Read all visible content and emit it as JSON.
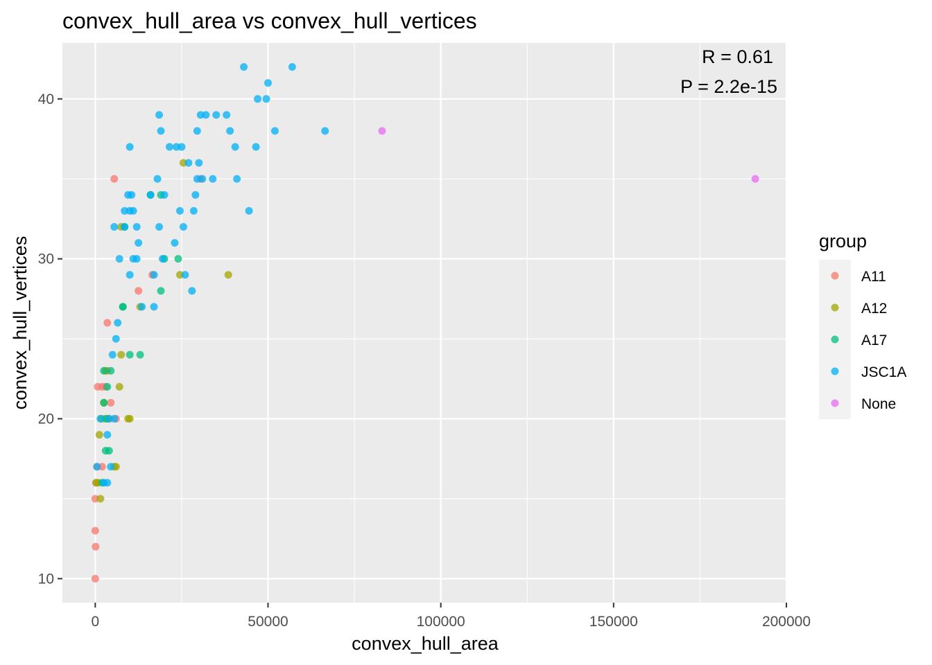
{
  "chart_data": {
    "type": "scatter",
    "title": "convex_hull_area vs convex_hull_vertices",
    "xlabel": "convex_hull_area",
    "ylabel": "convex_hull_vertices",
    "xlim": [
      -9500,
      200000
    ],
    "ylim": [
      8.5,
      43.5
    ],
    "x_ticks": [
      0,
      50000,
      100000,
      150000,
      200000
    ],
    "y_ticks": [
      10,
      20,
      30,
      40
    ],
    "grid": true,
    "legend": {
      "title": "group",
      "placement": "right",
      "entries": [
        "A11",
        "A12",
        "A17",
        "JSC1A",
        "None"
      ]
    },
    "annotations": [
      "R = 0.61",
      "P = 2.2e-15"
    ],
    "colors": {
      "A11": "#F8766D",
      "A12": "#A3A500",
      "A17": "#00BF7D",
      "JSC1A": "#00B0F6",
      "None": "#E76BF3",
      "panel": "#EBEBEB",
      "grid": "#FFFFFF"
    },
    "series": [
      {
        "name": "A11",
        "points": [
          [
            0,
            10
          ],
          [
            100,
            12
          ],
          [
            0,
            13
          ],
          [
            0,
            15
          ],
          [
            500,
            17
          ],
          [
            2000,
            17
          ],
          [
            200,
            16
          ],
          [
            700,
            22
          ],
          [
            2000,
            22
          ],
          [
            3000,
            22
          ],
          [
            3500,
            26
          ],
          [
            3500,
            23
          ],
          [
            4500,
            21
          ],
          [
            4000,
            20
          ],
          [
            6000,
            20
          ],
          [
            5500,
            35
          ],
          [
            12500,
            28
          ],
          [
            16500,
            29
          ],
          [
            30500,
            35
          ]
        ]
      },
      {
        "name": "A12",
        "points": [
          [
            1500,
            15
          ],
          [
            300,
            16
          ],
          [
            800,
            16
          ],
          [
            1200,
            19
          ],
          [
            1800,
            20
          ],
          [
            3500,
            20
          ],
          [
            5500,
            17
          ],
          [
            6000,
            17
          ],
          [
            7000,
            22
          ],
          [
            7500,
            24
          ],
          [
            7500,
            32
          ],
          [
            9500,
            20
          ],
          [
            10000,
            20
          ],
          [
            13000,
            27
          ],
          [
            24500,
            29
          ],
          [
            25500,
            36
          ],
          [
            38500,
            29
          ],
          [
            3000,
            23
          ],
          [
            2500,
            21
          ]
        ]
      },
      {
        "name": "A17",
        "points": [
          [
            2000,
            16
          ],
          [
            2500,
            21
          ],
          [
            2500,
            23
          ],
          [
            3000,
            18
          ],
          [
            3500,
            22
          ],
          [
            4000,
            18
          ],
          [
            4500,
            23
          ],
          [
            3000,
            20
          ],
          [
            8000,
            27
          ],
          [
            8000,
            27
          ],
          [
            10000,
            24
          ],
          [
            13000,
            24
          ],
          [
            16000,
            34
          ],
          [
            19000,
            34
          ],
          [
            19000,
            28
          ],
          [
            20000,
            30
          ],
          [
            24000,
            30
          ],
          [
            8500,
            32
          ]
        ]
      },
      {
        "name": "JSC1A",
        "points": [
          [
            500,
            17
          ],
          [
            1500,
            20
          ],
          [
            2500,
            16
          ],
          [
            3500,
            16
          ],
          [
            3500,
            19
          ],
          [
            4000,
            20
          ],
          [
            4500,
            17
          ],
          [
            5500,
            20
          ],
          [
            5000,
            24
          ],
          [
            6000,
            25
          ],
          [
            6500,
            26
          ],
          [
            7000,
            30
          ],
          [
            5500,
            32
          ],
          [
            8500,
            32
          ],
          [
            8500,
            33
          ],
          [
            9500,
            34
          ],
          [
            10000,
            33
          ],
          [
            10500,
            34
          ],
          [
            11000,
            33
          ],
          [
            11000,
            30
          ],
          [
            12000,
            30
          ],
          [
            12000,
            32
          ],
          [
            12500,
            31
          ],
          [
            10000,
            29
          ],
          [
            10000,
            37
          ],
          [
            13500,
            27
          ],
          [
            17000,
            29
          ],
          [
            17000,
            27
          ],
          [
            18000,
            35
          ],
          [
            18500,
            32
          ],
          [
            18500,
            39
          ],
          [
            19000,
            38
          ],
          [
            20000,
            34
          ],
          [
            19500,
            30
          ],
          [
            21500,
            37
          ],
          [
            23000,
            31
          ],
          [
            23500,
            37
          ],
          [
            24500,
            33
          ],
          [
            25000,
            37
          ],
          [
            25500,
            32
          ],
          [
            26000,
            29
          ],
          [
            27000,
            36
          ],
          [
            28000,
            28
          ],
          [
            28500,
            33
          ],
          [
            29000,
            34
          ],
          [
            29500,
            35
          ],
          [
            29500,
            38
          ],
          [
            30000,
            36
          ],
          [
            30500,
            39
          ],
          [
            31000,
            35
          ],
          [
            32000,
            39
          ],
          [
            34000,
            35
          ],
          [
            35000,
            39
          ],
          [
            38000,
            39
          ],
          [
            39000,
            38
          ],
          [
            40500,
            37
          ],
          [
            41000,
            35
          ],
          [
            43000,
            42
          ],
          [
            44500,
            33
          ],
          [
            46500,
            37
          ],
          [
            47000,
            40
          ],
          [
            49500,
            40
          ],
          [
            50000,
            41
          ],
          [
            52000,
            38
          ],
          [
            57000,
            42
          ],
          [
            66500,
            38
          ],
          [
            16000,
            34
          ]
        ]
      },
      {
        "name": "None",
        "points": [
          [
            83000,
            38
          ],
          [
            191000,
            35
          ]
        ]
      }
    ]
  }
}
